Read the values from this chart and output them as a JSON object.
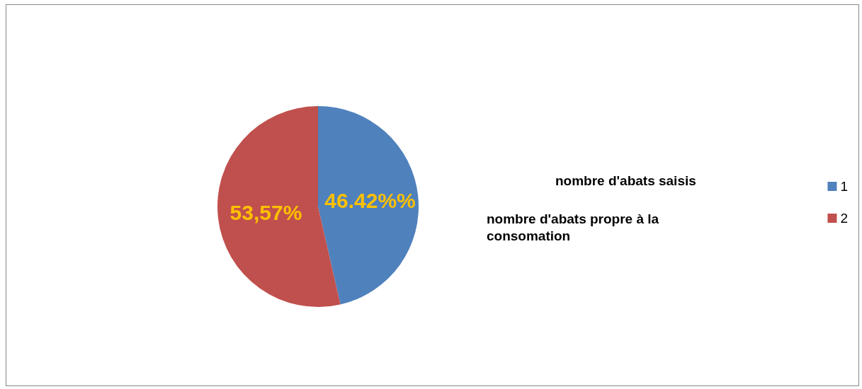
{
  "chart_data": {
    "type": "pie",
    "categories": [
      "1",
      "2"
    ],
    "values": [
      46.42,
      53.57
    ],
    "value_labels": [
      "46.42%%",
      "53,57%"
    ],
    "colors": [
      "#4f81bd",
      "#c0504d"
    ],
    "legend": "right",
    "annotations": [
      "nombre d'abats saisis",
      "nombre d'abats propre à la consomation"
    ]
  }
}
